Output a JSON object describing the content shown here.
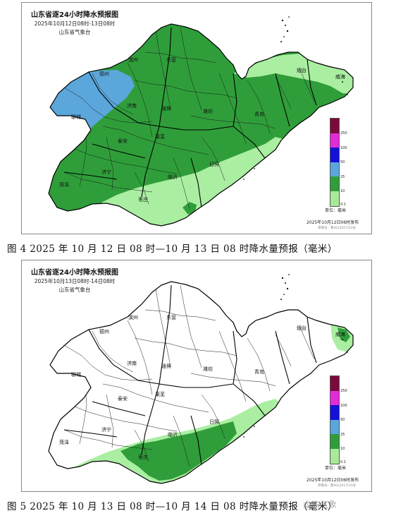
{
  "colors": {
    "green": "#2f9e3a",
    "light_green": "#aaeea2",
    "blue": "#5ba7dc",
    "white": "#ffffff",
    "legend": [
      "#a8ea9a",
      "#2f9e3a",
      "#5ba7dc",
      "#1411d8",
      "#e12cd8",
      "#7a0a3c"
    ]
  },
  "panels": [
    {
      "title": "山东省逐24小时降水预报图",
      "time_range": "2025年10月12日08时-13日08时",
      "agency": "山东省气象台",
      "publish": "2025年10月12日06时发布",
      "review_no": "审图号：鲁SG(2017)33号",
      "unit": "单位：毫米",
      "legend_labels": [
        "250",
        "100",
        "50",
        "25",
        "10",
        "0.1"
      ],
      "cities": [
        "德州",
        "滨州",
        "东营",
        "聊城",
        "济南",
        "淄博",
        "潍坊",
        "烟台",
        "威海",
        "青岛",
        "泰安",
        "莱芜",
        "济宁",
        "菏泽",
        "临沂",
        "日照",
        "枣庄"
      ],
      "caption": "图 4  2025 年 10 月 12 日 08 时—10 月 13 日 08 时降水量预报（毫米）"
    },
    {
      "title": "山东省逐24小时降水预报图",
      "time_range": "2025年10月13日08时-14日08时",
      "agency": "山东省气象台",
      "publish": "2025年10月12日06时发布",
      "review_no": "审图号：鲁SG(2017)33号",
      "unit": "单位：毫米",
      "legend_labels": [
        "250",
        "100",
        "50",
        "25",
        "10",
        "0.1"
      ],
      "cities": [
        "德州",
        "滨州",
        "东营",
        "聊城",
        "济南",
        "淄博",
        "潍坊",
        "烟台",
        "威海",
        "青岛",
        "泰安",
        "莱芜",
        "济宁",
        "菏泽",
        "临沂",
        "日照",
        "枣庄"
      ],
      "caption": "图 5  2025 年 10 月 13 日 08 时—10 月 14 日 08 时降水量预报（毫米）"
    }
  ],
  "watermark": "山东气象"
}
